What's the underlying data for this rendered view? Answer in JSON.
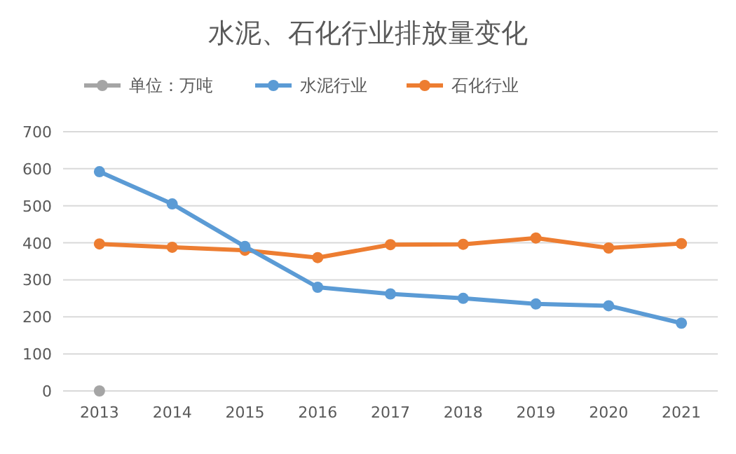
{
  "chart_data": {
    "type": "line",
    "title": "水泥、石化行业排放量变化",
    "categories": [
      "2013",
      "2014",
      "2015",
      "2016",
      "2017",
      "2018",
      "2019",
      "2020",
      "2021"
    ],
    "series": [
      {
        "name": "单位：万吨",
        "color": "#a5a5a5",
        "values": [
          0,
          null,
          null,
          null,
          null,
          null,
          null,
          null,
          null
        ]
      },
      {
        "name": "水泥行业",
        "color": "#5b9bd5",
        "values": [
          592,
          505,
          390,
          280,
          262,
          250,
          235,
          230,
          183
        ]
      },
      {
        "name": "石化行业",
        "color": "#ed7d31",
        "values": [
          397,
          388,
          380,
          360,
          395,
          396,
          413,
          386,
          398
        ]
      }
    ],
    "ylim": [
      0,
      700
    ],
    "yticks": [
      0,
      100,
      200,
      300,
      400,
      500,
      600,
      700
    ],
    "grid": "y",
    "legend": "top",
    "marker": "circle",
    "line_style": "solid"
  }
}
